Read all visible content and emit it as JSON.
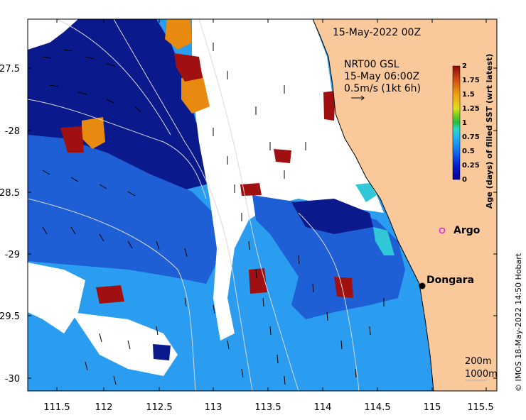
{
  "map": {
    "date_label": "15-May-2022 00Z",
    "current_label_line1": "NRT00 GSL",
    "current_label_line2": "15-May 06:00Z",
    "current_label_line3": "0.5m/s (1kt 6h)",
    "colorbar_title": "Age (days) of filled SST (wrt latest)",
    "colorbar_ticks": [
      "0",
      "0.25",
      "0.5",
      "0.75",
      "1",
      "1.25",
      "1.5",
      "1.75",
      "2"
    ],
    "lon_ticks": [
      "111.5",
      "112",
      "112.5",
      "113",
      "113.5",
      "114",
      "114.5",
      "115",
      "115.5"
    ],
    "lat_ticks": [
      "-27.5",
      "-28",
      "-28.5",
      "-29",
      "-29.5",
      "-30"
    ],
    "places": {
      "argo": "Argo",
      "dongara": "Dongara"
    },
    "isobath_labels": [
      "200m",
      "1000m"
    ],
    "credit": "© IMOS 18-May-2022 14:50 Hobart",
    "colors": {
      "land": "#f9c99b",
      "no_data": "#ffffff",
      "deep_navy": "#0a1a8c",
      "mid_blue": "#1f5fd6",
      "light_blue": "#2a9df0",
      "cyan": "#30c8d8",
      "orange": "#e88a10",
      "dark_red": "#a01010",
      "argo_marker": "#e020e0"
    }
  }
}
